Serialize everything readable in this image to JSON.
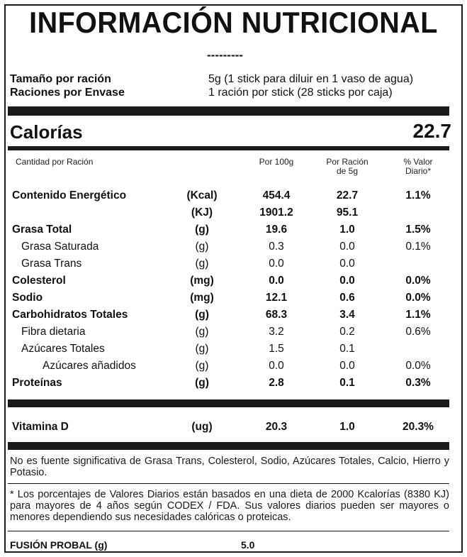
{
  "title": "INFORMACIÓN NUTRICIONAL",
  "dashes": "---------",
  "serving": [
    {
      "label": "Tamaño por ración",
      "value": "5g (1 stick para diluir en 1 vaso de agua)"
    },
    {
      "label": "Raciones por Envase",
      "value": "1 ración por stick (28 sticks por caja)"
    }
  ],
  "calories": {
    "label": "Calorías",
    "value": "22.7"
  },
  "headers": {
    "amount": "Cantidad por Ración",
    "per100_line1": "Por 100g",
    "perserv_line1": "Por Ración",
    "perserv_line2": "de 5g",
    "dv_line1": "% Valor",
    "dv_line2": "Diario*"
  },
  "rows": [
    {
      "name": "Contenido Energético",
      "unit": "(Kcal)",
      "per100": "454.4",
      "perserv": "22.7",
      "dv": "1.1%"
    },
    {
      "name": "",
      "unit": "(KJ)",
      "per100": "1901.2",
      "perserv": "95.1",
      "dv": ""
    },
    {
      "name": "Grasa Total",
      "unit": "(g)",
      "per100": "19.6",
      "perserv": "1.0",
      "dv": "1.5%"
    },
    {
      "name": "Grasa Saturada",
      "unit": "(g)",
      "per100": "0.3",
      "perserv": "0.0",
      "dv": "0.1%"
    },
    {
      "name": "Grasa Trans",
      "unit": "(g)",
      "per100": "0.0",
      "perserv": "0.0",
      "dv": ""
    },
    {
      "name": "Colesterol",
      "unit": "(mg)",
      "per100": "0.0",
      "perserv": "0.0",
      "dv": "0.0%"
    },
    {
      "name": "Sodio",
      "unit": "(mg)",
      "per100": "12.1",
      "perserv": "0.6",
      "dv": "0.0%"
    },
    {
      "name": "Carbohidratos Totales",
      "unit": "(g)",
      "per100": "68.3",
      "perserv": "3.4",
      "dv": "1.1%"
    },
    {
      "name": "Fibra dietaria",
      "unit": "(g)",
      "per100": "3.2",
      "perserv": "0.2",
      "dv": "0.6%"
    },
    {
      "name": "Azúcares Totales",
      "unit": "(g)",
      "per100": "1.5",
      "perserv": "0.1",
      "dv": ""
    },
    {
      "name": "Azúcares añadidos",
      "unit": "(g)",
      "per100": "0.0",
      "perserv": "0.0",
      "dv": "0.0%"
    },
    {
      "name": "Proteínas",
      "unit": "(g)",
      "per100": "2.8",
      "perserv": "0.1",
      "dv": "0.3%"
    }
  ],
  "vitamin": {
    "name": "Vitamina D",
    "unit": "(ug)",
    "per100": "20.3",
    "perserv": "1.0",
    "dv": "20.3%"
  },
  "note1": "No es fuente significativa de Grasa Trans, Colesterol, Sodio, Azúcares Totales, Calcio, Hierro y Potasio.",
  "note2": "* Los porcentajes de Valores Diarios están basados en una dieta de 2000 Kcalorías (8380 KJ) para mayores de 4 años según CODEX / FDA. Sus valores diarios pueden ser mayores o menores dependiendo sus necesidades calóricas o proteicas.",
  "footer": {
    "label": "FUSIÓN PROBAL (g)",
    "value": "5.0"
  }
}
